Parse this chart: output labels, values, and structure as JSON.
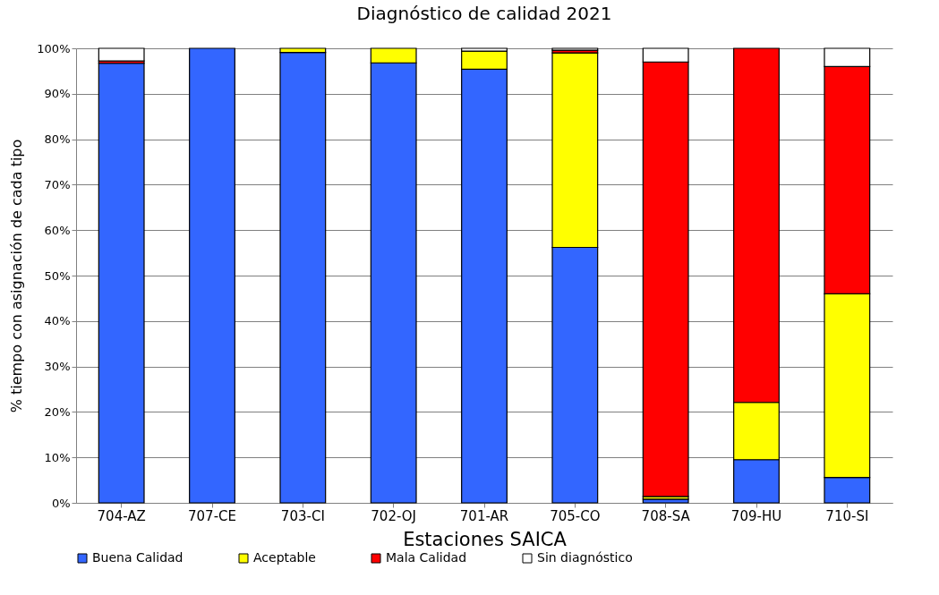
{
  "chart_data": {
    "type": "bar",
    "stacked": true,
    "title": "Diagnóstico de calidad 2021",
    "xlabel": "Estaciones SAICA",
    "ylabel": "% tiempo con asignación de cada tipo",
    "categories": [
      "704-AZ",
      "707-CE",
      "703-CI",
      "702-OJ",
      "701-AR",
      "705-CO",
      "708-SA",
      "709-HU",
      "710-SI"
    ],
    "series": [
      {
        "name": "Buena Calidad",
        "color": "#3366ff",
        "values": [
          96.7,
          100,
          99.1,
          96.8,
          95.4,
          56.2,
          0.8,
          9.5,
          5.6
        ]
      },
      {
        "name": "Aceptable",
        "color": "#ffff00",
        "values": [
          0,
          0,
          0.9,
          3.2,
          4.0,
          42.8,
          0.6,
          12.6,
          40.4
        ]
      },
      {
        "name": "Mala Calidad",
        "color": "#ff0000",
        "values": [
          0.5,
          0,
          0,
          0,
          0,
          0.6,
          95.6,
          77.9,
          50.0
        ]
      },
      {
        "name": "Sin diagnóstico",
        "color": "#ffffff",
        "values": [
          2.8,
          0,
          0,
          0,
          0.6,
          0.4,
          3.0,
          0,
          4.0
        ]
      }
    ],
    "ylim": [
      0,
      100
    ],
    "yticks": [
      {
        "value": 0,
        "label": "0%"
      },
      {
        "value": 10,
        "label": "10%"
      },
      {
        "value": 20,
        "label": "20%"
      },
      {
        "value": 30,
        "label": "30%"
      },
      {
        "value": 40,
        "label": "40%"
      },
      {
        "value": 50,
        "label": "50%"
      },
      {
        "value": 60,
        "label": "60%"
      },
      {
        "value": 70,
        "label": "70%"
      },
      {
        "value": 80,
        "label": "80%"
      },
      {
        "value": 90,
        "label": "90%"
      },
      {
        "value": 100,
        "label": "100%"
      }
    ],
    "grid": "y",
    "legend": "bottom"
  }
}
